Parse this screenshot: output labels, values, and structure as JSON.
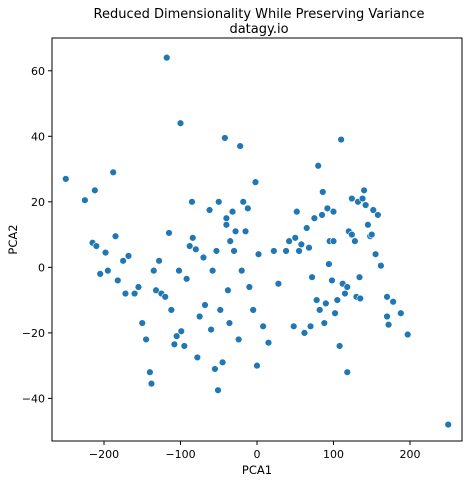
{
  "chart_data": {
    "type": "scatter",
    "title": "Reduced Dimensionality While Preserving Variance",
    "subtitle": "datagy.io",
    "xlabel": "PCA1",
    "ylabel": "PCA2",
    "xlim": [
      -268,
      268
    ],
    "ylim": [
      -53,
      70
    ],
    "xticks": [
      -200,
      -100,
      0,
      100,
      200
    ],
    "yticks": [
      -40,
      -20,
      0,
      20,
      40,
      60
    ],
    "xtick_labels": [
      "−200",
      "−100",
      "0",
      "100",
      "200"
    ],
    "ytick_labels": [
      "−40",
      "−20",
      "0",
      "20",
      "40",
      "60"
    ],
    "grid": false,
    "color": "#1f77b4",
    "points": [
      [
        -250,
        27
      ],
      [
        -225,
        20.5
      ],
      [
        -215,
        7.5
      ],
      [
        -212,
        23.5
      ],
      [
        -210,
        6.5
      ],
      [
        -205,
        -2
      ],
      [
        -198,
        4.5
      ],
      [
        -195,
        -1
      ],
      [
        -188,
        29
      ],
      [
        -185,
        9.5
      ],
      [
        -182,
        -4
      ],
      [
        -175,
        2
      ],
      [
        -172,
        -8
      ],
      [
        -168,
        3.5
      ],
      [
        -160,
        -8
      ],
      [
        -155,
        -6
      ],
      [
        -150,
        -17
      ],
      [
        -145,
        -22
      ],
      [
        -140,
        -32
      ],
      [
        -138,
        -35.5
      ],
      [
        -135,
        -1
      ],
      [
        -132,
        -7
      ],
      [
        -128,
        2
      ],
      [
        -125,
        -8
      ],
      [
        -120,
        -9
      ],
      [
        -118,
        64
      ],
      [
        -115,
        10.5
      ],
      [
        -112,
        -13
      ],
      [
        -108,
        -23.5
      ],
      [
        -105,
        -21
      ],
      [
        -102,
        -1
      ],
      [
        -100,
        44
      ],
      [
        -99,
        -19.5
      ],
      [
        -95,
        -24
      ],
      [
        -92,
        -3.5
      ],
      [
        -88,
        6.5
      ],
      [
        -85,
        20
      ],
      [
        -84,
        9
      ],
      [
        -80,
        5.5
      ],
      [
        -78,
        -27.5
      ],
      [
        -75,
        -15
      ],
      [
        -70,
        3
      ],
      [
        -68,
        -11.5
      ],
      [
        -62,
        17.5
      ],
      [
        -60,
        -19
      ],
      [
        -58,
        -1
      ],
      [
        -55,
        -31
      ],
      [
        -53,
        5
      ],
      [
        -51,
        -37.5
      ],
      [
        -50,
        20
      ],
      [
        -48,
        -13
      ],
      [
        -45,
        -29
      ],
      [
        -42,
        39.5
      ],
      [
        -40,
        15
      ],
      [
        -40,
        13
      ],
      [
        -38,
        -7
      ],
      [
        -36,
        -17
      ],
      [
        -35,
        8
      ],
      [
        -32,
        17
      ],
      [
        -30,
        5
      ],
      [
        -28,
        11
      ],
      [
        -24,
        -22
      ],
      [
        -22,
        37
      ],
      [
        -20,
        -1
      ],
      [
        -18,
        20
      ],
      [
        -15,
        11
      ],
      [
        -12,
        18
      ],
      [
        -10,
        -6
      ],
      [
        -5,
        -13
      ],
      [
        -2,
        26
      ],
      [
        0,
        -30
      ],
      [
        2,
        4
      ],
      [
        8,
        -18
      ],
      [
        15,
        -23
      ],
      [
        22,
        5
      ],
      [
        28,
        -5
      ],
      [
        38,
        5
      ],
      [
        42,
        8
      ],
      [
        48,
        -18
      ],
      [
        50,
        9
      ],
      [
        52,
        17
      ],
      [
        55,
        5
      ],
      [
        58,
        7
      ],
      [
        62,
        -20
      ],
      [
        65,
        12
      ],
      [
        68,
        6
      ],
      [
        70,
        -18
      ],
      [
        72,
        -3
      ],
      [
        75,
        15
      ],
      [
        78,
        -10
      ],
      [
        80,
        31
      ],
      [
        82,
        -13
      ],
      [
        85,
        16
      ],
      [
        86,
        23
      ],
      [
        88,
        -17
      ],
      [
        90,
        -11
      ],
      [
        92,
        18
      ],
      [
        94,
        1
      ],
      [
        95,
        8
      ],
      [
        98,
        -4
      ],
      [
        100,
        17
      ],
      [
        100,
        8
      ],
      [
        102,
        -14
      ],
      [
        105,
        -10
      ],
      [
        108,
        -24
      ],
      [
        110,
        39
      ],
      [
        112,
        -5
      ],
      [
        115,
        -8
      ],
      [
        118,
        -6
      ],
      [
        118,
        -32
      ],
      [
        120,
        11
      ],
      [
        124,
        10
      ],
      [
        124,
        21
      ],
      [
        128,
        8
      ],
      [
        130,
        -9
      ],
      [
        132,
        20
      ],
      [
        134,
        -3
      ],
      [
        135,
        -9.5
      ],
      [
        138,
        21
      ],
      [
        140,
        23.5
      ],
      [
        142,
        19
      ],
      [
        145,
        13
      ],
      [
        148,
        9.5
      ],
      [
        150,
        10
      ],
      [
        152,
        17.5
      ],
      [
        155,
        4
      ],
      [
        158,
        16
      ],
      [
        162,
        0.5
      ],
      [
        170,
        -9
      ],
      [
        170,
        -15
      ],
      [
        172,
        -17.5
      ],
      [
        178,
        -10.5
      ],
      [
        188,
        -14
      ],
      [
        197,
        -20.5
      ],
      [
        250,
        -48
      ]
    ]
  }
}
